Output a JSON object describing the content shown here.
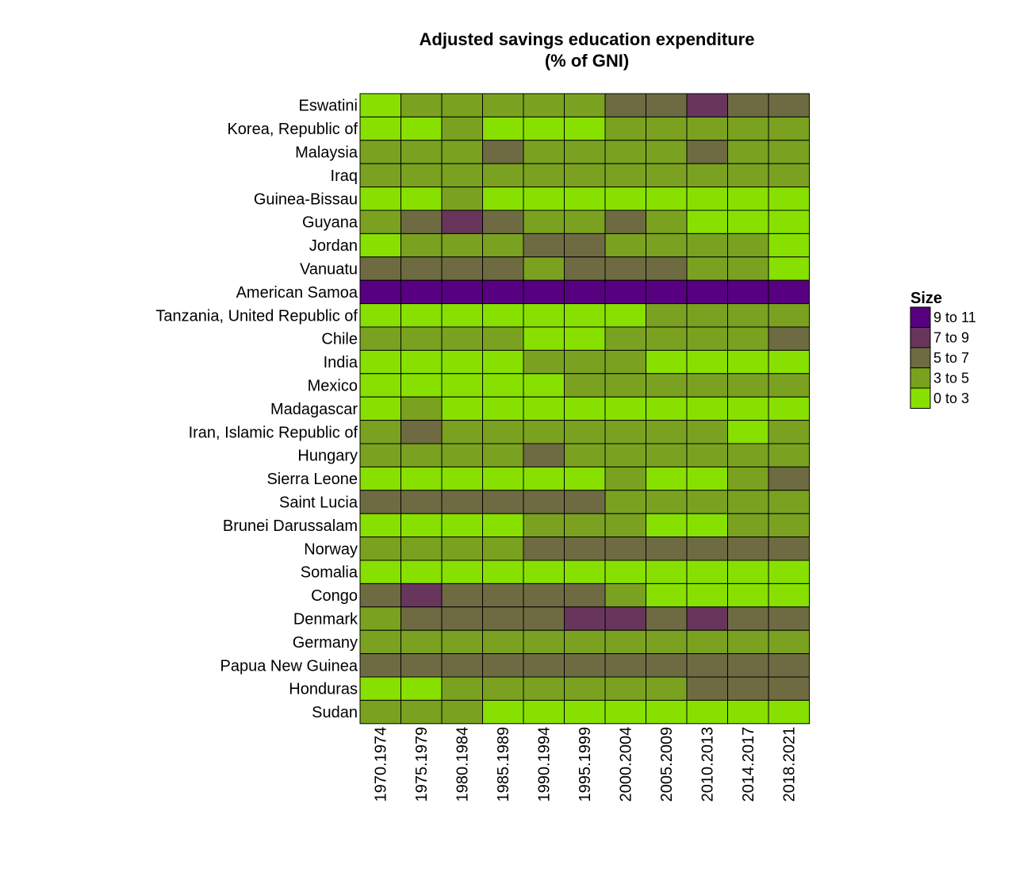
{
  "chart_data": {
    "type": "heatmap",
    "title_lines": [
      "Adjusted savings education expenditure",
      "(% of GNI)"
    ],
    "xlabel": "",
    "ylabel": "",
    "columns": [
      "1970.1974",
      "1975.1979",
      "1980.1984",
      "1985.1989",
      "1990.1994",
      "1995.1999",
      "2000.2004",
      "2005.2009",
      "2010.2013",
      "2014.2017",
      "2018.2021"
    ],
    "rows": [
      "Eswatini",
      "Korea, Republic of",
      "Malaysia",
      "Iraq",
      "Guinea-Bissau",
      "Guyana",
      "Jordan",
      "Vanuatu",
      "American Samoa",
      "Tanzania, United Republic of",
      "Chile",
      "India",
      "Mexico",
      "Madagascar",
      "Iran, Islamic Republic of",
      "Hungary",
      "Sierra Leone",
      "Saint Lucia",
      "Brunei Darussalam",
      "Norway",
      "Somalia",
      "Congo",
      "Denmark",
      "Germany",
      "Papua New Guinea",
      "Honduras",
      "Sudan"
    ],
    "bin_scale": [
      "0 to 3",
      "3 to 5",
      "5 to 7",
      "7 to 9",
      "9 to 11"
    ],
    "cells": [
      [
        0,
        1,
        1,
        1,
        1,
        1,
        2,
        2,
        3,
        2,
        2
      ],
      [
        0,
        0,
        1,
        0,
        0,
        0,
        1,
        1,
        1,
        1,
        1
      ],
      [
        1,
        1,
        1,
        2,
        1,
        1,
        1,
        1,
        2,
        1,
        1
      ],
      [
        1,
        1,
        1,
        1,
        1,
        1,
        1,
        1,
        1,
        1,
        1
      ],
      [
        0,
        0,
        1,
        0,
        0,
        0,
        0,
        0,
        0,
        0,
        0
      ],
      [
        1,
        2,
        3,
        2,
        1,
        1,
        2,
        1,
        0,
        0,
        0
      ],
      [
        0,
        1,
        1,
        1,
        2,
        2,
        1,
        1,
        1,
        1,
        0
      ],
      [
        2,
        2,
        2,
        2,
        1,
        2,
        2,
        2,
        1,
        1,
        0
      ],
      [
        4,
        4,
        4,
        4,
        4,
        4,
        4,
        4,
        4,
        4,
        4
      ],
      [
        0,
        0,
        0,
        0,
        0,
        0,
        0,
        1,
        1,
        1,
        1
      ],
      [
        1,
        1,
        1,
        1,
        0,
        0,
        1,
        1,
        1,
        1,
        2
      ],
      [
        0,
        0,
        0,
        0,
        1,
        1,
        1,
        0,
        0,
        0,
        0
      ],
      [
        0,
        0,
        0,
        0,
        0,
        1,
        1,
        1,
        1,
        1,
        1
      ],
      [
        0,
        1,
        0,
        0,
        0,
        0,
        0,
        0,
        0,
        0,
        0
      ],
      [
        1,
        2,
        1,
        1,
        1,
        1,
        1,
        1,
        1,
        0,
        1
      ],
      [
        1,
        1,
        1,
        1,
        2,
        1,
        1,
        1,
        1,
        1,
        1
      ],
      [
        0,
        0,
        0,
        0,
        0,
        0,
        1,
        0,
        0,
        1,
        2
      ],
      [
        2,
        2,
        2,
        2,
        2,
        2,
        1,
        1,
        1,
        1,
        1
      ],
      [
        0,
        0,
        0,
        0,
        1,
        1,
        1,
        0,
        0,
        1,
        1
      ],
      [
        1,
        1,
        1,
        1,
        2,
        2,
        2,
        2,
        2,
        2,
        2
      ],
      [
        0,
        0,
        0,
        0,
        0,
        0,
        0,
        0,
        0,
        0,
        0
      ],
      [
        2,
        3,
        2,
        2,
        2,
        2,
        1,
        0,
        0,
        0,
        0
      ],
      [
        1,
        2,
        2,
        2,
        2,
        3,
        3,
        2,
        3,
        2,
        2
      ],
      [
        1,
        1,
        1,
        1,
        1,
        1,
        1,
        1,
        1,
        1,
        1
      ],
      [
        2,
        2,
        2,
        2,
        2,
        2,
        2,
        2,
        2,
        2,
        2
      ],
      [
        0,
        0,
        1,
        1,
        1,
        1,
        1,
        1,
        2,
        2,
        2
      ],
      [
        1,
        1,
        1,
        0,
        0,
        0,
        0,
        0,
        0,
        0,
        0
      ]
    ],
    "colors": [
      "#88e000",
      "#7aa220",
      "#6e6b42",
      "#68355d",
      "#570080"
    ],
    "legend": {
      "title": "Size",
      "placement": "right",
      "entries": [
        "9 to 11",
        "7 to 9",
        "5 to 7",
        "3 to 5",
        "0 to 3"
      ],
      "entry_colors": [
        "#570080",
        "#68355d",
        "#6e6b42",
        "#7aa220",
        "#88e000"
      ]
    },
    "grid": false
  }
}
